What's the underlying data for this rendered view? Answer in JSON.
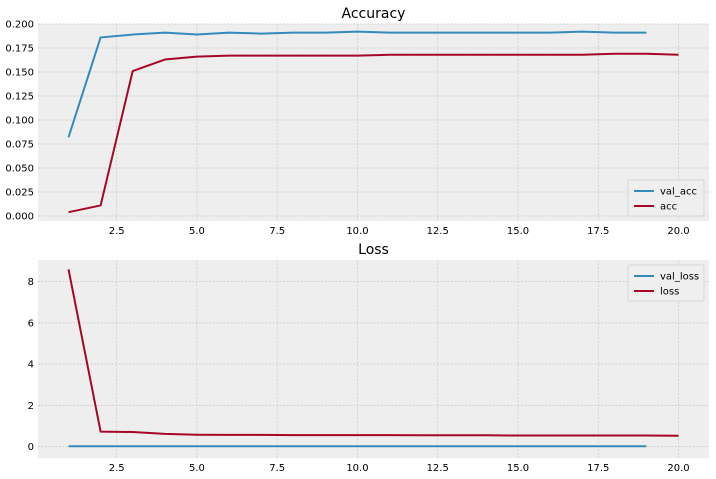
{
  "colors": {
    "panel_bg": "#eeeeee",
    "grid": "#c8c8c8",
    "blue": "#348abd",
    "red": "#a60628"
  },
  "chart_data": [
    {
      "type": "line",
      "title": "Accuracy",
      "xlabel": "",
      "ylabel": "",
      "xlim": [
        0.05,
        20.95
      ],
      "ylim": [
        -0.0052,
        0.2
      ],
      "xticks": [
        2.5,
        5.0,
        7.5,
        10.0,
        12.5,
        15.0,
        17.5,
        20.0
      ],
      "xtick_labels": [
        "2.5",
        "5.0",
        "7.5",
        "10.0",
        "12.5",
        "15.0",
        "17.5",
        "20.0"
      ],
      "yticks": [
        0.0,
        0.025,
        0.05,
        0.075,
        0.1,
        0.125,
        0.15,
        0.175,
        0.2
      ],
      "ytick_labels": [
        "0.000",
        "0.025",
        "0.050",
        "0.075",
        "0.100",
        "0.125",
        "0.150",
        "0.175",
        "0.200"
      ],
      "grid": true,
      "legend": "lower-right",
      "series": [
        {
          "name": "val_acc",
          "color": "#348abd",
          "x": [
            1,
            2,
            3,
            4,
            5,
            6,
            7,
            8,
            9,
            10,
            11,
            12,
            13,
            14,
            15,
            16,
            17,
            18,
            19
          ],
          "y": [
            0.082,
            0.186,
            0.189,
            0.191,
            0.189,
            0.191,
            0.19,
            0.191,
            0.191,
            0.192,
            0.191,
            0.191,
            0.191,
            0.191,
            0.191,
            0.191,
            0.192,
            0.191,
            0.191
          ]
        },
        {
          "name": "acc",
          "color": "#a60628",
          "x": [
            1,
            2,
            3,
            4,
            5,
            6,
            7,
            8,
            9,
            10,
            11,
            12,
            13,
            14,
            15,
            16,
            17,
            18,
            19,
            20
          ],
          "y": [
            0.004,
            0.011,
            0.151,
            0.163,
            0.166,
            0.167,
            0.167,
            0.167,
            0.167,
            0.167,
            0.168,
            0.168,
            0.168,
            0.168,
            0.168,
            0.168,
            0.168,
            0.169,
            0.169,
            0.168
          ]
        }
      ]
    },
    {
      "type": "line",
      "title": "Loss",
      "xlabel": "",
      "ylabel": "",
      "xlim": [
        0.05,
        20.95
      ],
      "ylim": [
        -0.55,
        9.05
      ],
      "xticks": [
        2.5,
        5.0,
        7.5,
        10.0,
        12.5,
        15.0,
        17.5,
        20.0
      ],
      "xtick_labels": [
        "2.5",
        "5.0",
        "7.5",
        "10.0",
        "12.5",
        "15.0",
        "17.5",
        "20.0"
      ],
      "yticks": [
        0,
        2,
        4,
        6,
        8
      ],
      "ytick_labels": [
        "0",
        "2",
        "4",
        "6",
        "8"
      ],
      "grid": true,
      "legend": "upper-right",
      "series": [
        {
          "name": "val_loss",
          "color": "#348abd",
          "x": [
            1,
            2,
            3,
            4,
            5,
            6,
            7,
            8,
            9,
            10,
            11,
            12,
            13,
            14,
            15,
            16,
            17,
            18,
            19
          ],
          "y": [
            0.02,
            0.02,
            0.02,
            0.02,
            0.02,
            0.02,
            0.02,
            0.02,
            0.02,
            0.02,
            0.02,
            0.02,
            0.02,
            0.02,
            0.02,
            0.02,
            0.02,
            0.02,
            0.02
          ]
        },
        {
          "name": "loss",
          "color": "#a60628",
          "x": [
            1,
            2,
            3,
            4,
            5,
            6,
            7,
            8,
            9,
            10,
            11,
            12,
            13,
            14,
            15,
            16,
            17,
            18,
            19,
            20
          ],
          "y": [
            8.6,
            0.73,
            0.71,
            0.62,
            0.58,
            0.57,
            0.57,
            0.56,
            0.56,
            0.56,
            0.56,
            0.55,
            0.55,
            0.55,
            0.54,
            0.54,
            0.54,
            0.54,
            0.54,
            0.53
          ]
        }
      ]
    }
  ]
}
